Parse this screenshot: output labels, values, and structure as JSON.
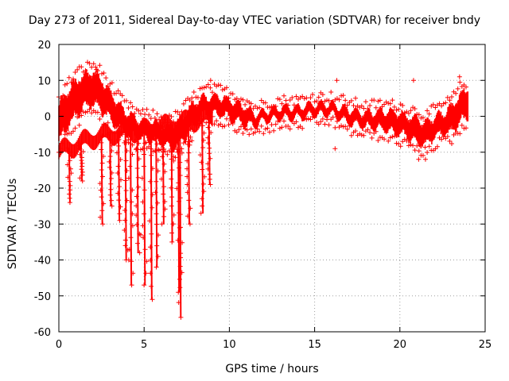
{
  "chart_data": {
    "type": "scatter",
    "title": "Day 273 of 2011, Sidereal Day-to-day VTEC variation (SDTVAR) for receiver bndy",
    "xlabel": "GPS time / hours",
    "ylabel": "SDTVAR / TECUs",
    "xlim": [
      0,
      25
    ],
    "ylim": [
      -60,
      20
    ],
    "xticks": [
      "0",
      "5",
      "10",
      "15",
      "20",
      "25"
    ],
    "yticks": [
      "20",
      "10",
      "0",
      "-10",
      "-20",
      "-30",
      "-40",
      "-50",
      "-60"
    ],
    "grid": true,
    "marker": "+",
    "color": "#ff0000",
    "series": [
      {
        "name": "bndy",
        "envelope": {
          "x": [
            0.0,
            0.5,
            1.0,
            1.5,
            2.0,
            2.5,
            3.0,
            3.5,
            4.0,
            4.5,
            5.0,
            5.5,
            6.0,
            6.5,
            7.0,
            7.5,
            8.0,
            8.5,
            9.0,
            9.5,
            10.0,
            10.5,
            11.0,
            11.5,
            12.0,
            13.0,
            14.0,
            15.0,
            16.0,
            17.0,
            18.0,
            19.0,
            20.0,
            20.5,
            21.0,
            21.5,
            22.0,
            22.5,
            23.0,
            23.5,
            24.0
          ],
          "center": [
            -2,
            2,
            5,
            7,
            8,
            6,
            3,
            0,
            -2,
            -3,
            -4,
            -4,
            -5,
            -6,
            -5,
            -2,
            1,
            3,
            3,
            3,
            2,
            1,
            0,
            -1,
            0,
            1,
            1,
            2,
            2,
            0,
            -1,
            -1,
            -2,
            -3,
            -4,
            -5,
            -3,
            -2,
            -1,
            2,
            4
          ],
          "spread": [
            10,
            10,
            10,
            9,
            9,
            9,
            8,
            7,
            6,
            5,
            5,
            5,
            5,
            6,
            7,
            7,
            6,
            5,
            5,
            5,
            5,
            5,
            5,
            3,
            3,
            3,
            3,
            3,
            3,
            4,
            4,
            5,
            6,
            6,
            7,
            6,
            6,
            6,
            7,
            8,
            8
          ]
        },
        "lower_band": {
          "x": [
            0.0,
            1.0,
            2.0,
            3.0,
            4.0,
            5.0,
            6.0,
            7.0,
            8.0,
            9.0
          ],
          "y": [
            -10,
            -8,
            -6,
            -5,
            -4,
            -4,
            -3,
            -2,
            -1,
            0
          ]
        },
        "spikes": [
          {
            "x": 0.6,
            "min": -24
          },
          {
            "x": 1.3,
            "min": -18
          },
          {
            "x": 2.5,
            "min": -30
          },
          {
            "x": 3.0,
            "min": -25
          },
          {
            "x": 3.5,
            "min": -29
          },
          {
            "x": 3.9,
            "min": -40
          },
          {
            "x": 4.2,
            "min": -47
          },
          {
            "x": 4.6,
            "min": -38
          },
          {
            "x": 5.0,
            "min": -47
          },
          {
            "x": 5.4,
            "min": -51
          },
          {
            "x": 5.7,
            "min": -42
          },
          {
            "x": 6.1,
            "min": -30
          },
          {
            "x": 6.6,
            "min": -35
          },
          {
            "x": 7.0,
            "min": -49
          },
          {
            "x": 7.1,
            "min": -56
          },
          {
            "x": 7.6,
            "min": -30
          },
          {
            "x": 8.4,
            "min": -27
          },
          {
            "x": 8.8,
            "min": -19
          }
        ],
        "outliers": [
          {
            "x": 2.2,
            "y": 13
          },
          {
            "x": 1.8,
            "y": 11
          },
          {
            "x": 8.9,
            "y": 10
          },
          {
            "x": 16.3,
            "y": 10
          },
          {
            "x": 16.2,
            "y": -9
          },
          {
            "x": 20.8,
            "y": 10
          },
          {
            "x": 21.1,
            "y": -12
          },
          {
            "x": 21.5,
            "y": -12
          },
          {
            "x": 23.5,
            "y": 11
          },
          {
            "x": 3.9,
            "y": -36
          },
          {
            "x": 4.1,
            "y": -40
          },
          {
            "x": 4.8,
            "y": -33
          }
        ]
      }
    ]
  }
}
